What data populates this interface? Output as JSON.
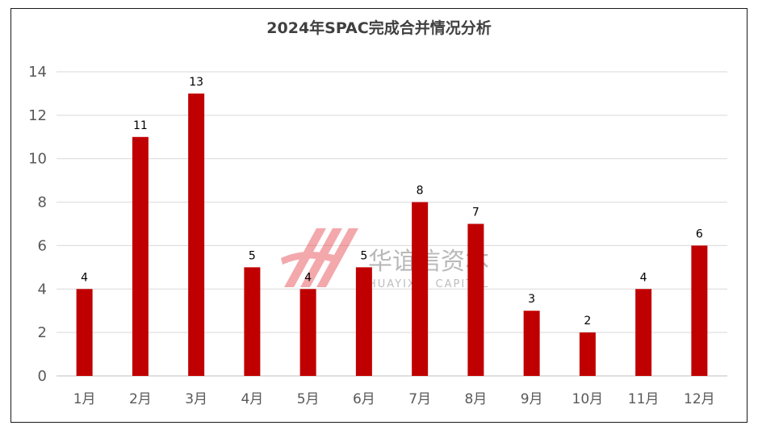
{
  "watermark": {
    "cn": "华谊信资本",
    "en": "HUAYIXIN CAPITAL",
    "logo_color": "#e5404a"
  },
  "chart_data": {
    "type": "bar",
    "title": "2024年SPAC完成合并情况分析",
    "xlabel": "",
    "ylabel": "",
    "categories": [
      "1月",
      "2月",
      "3月",
      "4月",
      "5月",
      "6月",
      "7月",
      "8月",
      "9月",
      "10月",
      "11月",
      "12月"
    ],
    "values": [
      4,
      11,
      13,
      5,
      4,
      5,
      8,
      7,
      3,
      2,
      4,
      6
    ],
    "ylim": [
      0,
      14
    ],
    "yticks": [
      0,
      2,
      4,
      6,
      8,
      10,
      12,
      14
    ],
    "grid": true,
    "legend": "none",
    "bar_color": "#c00000",
    "data_labels": true
  }
}
